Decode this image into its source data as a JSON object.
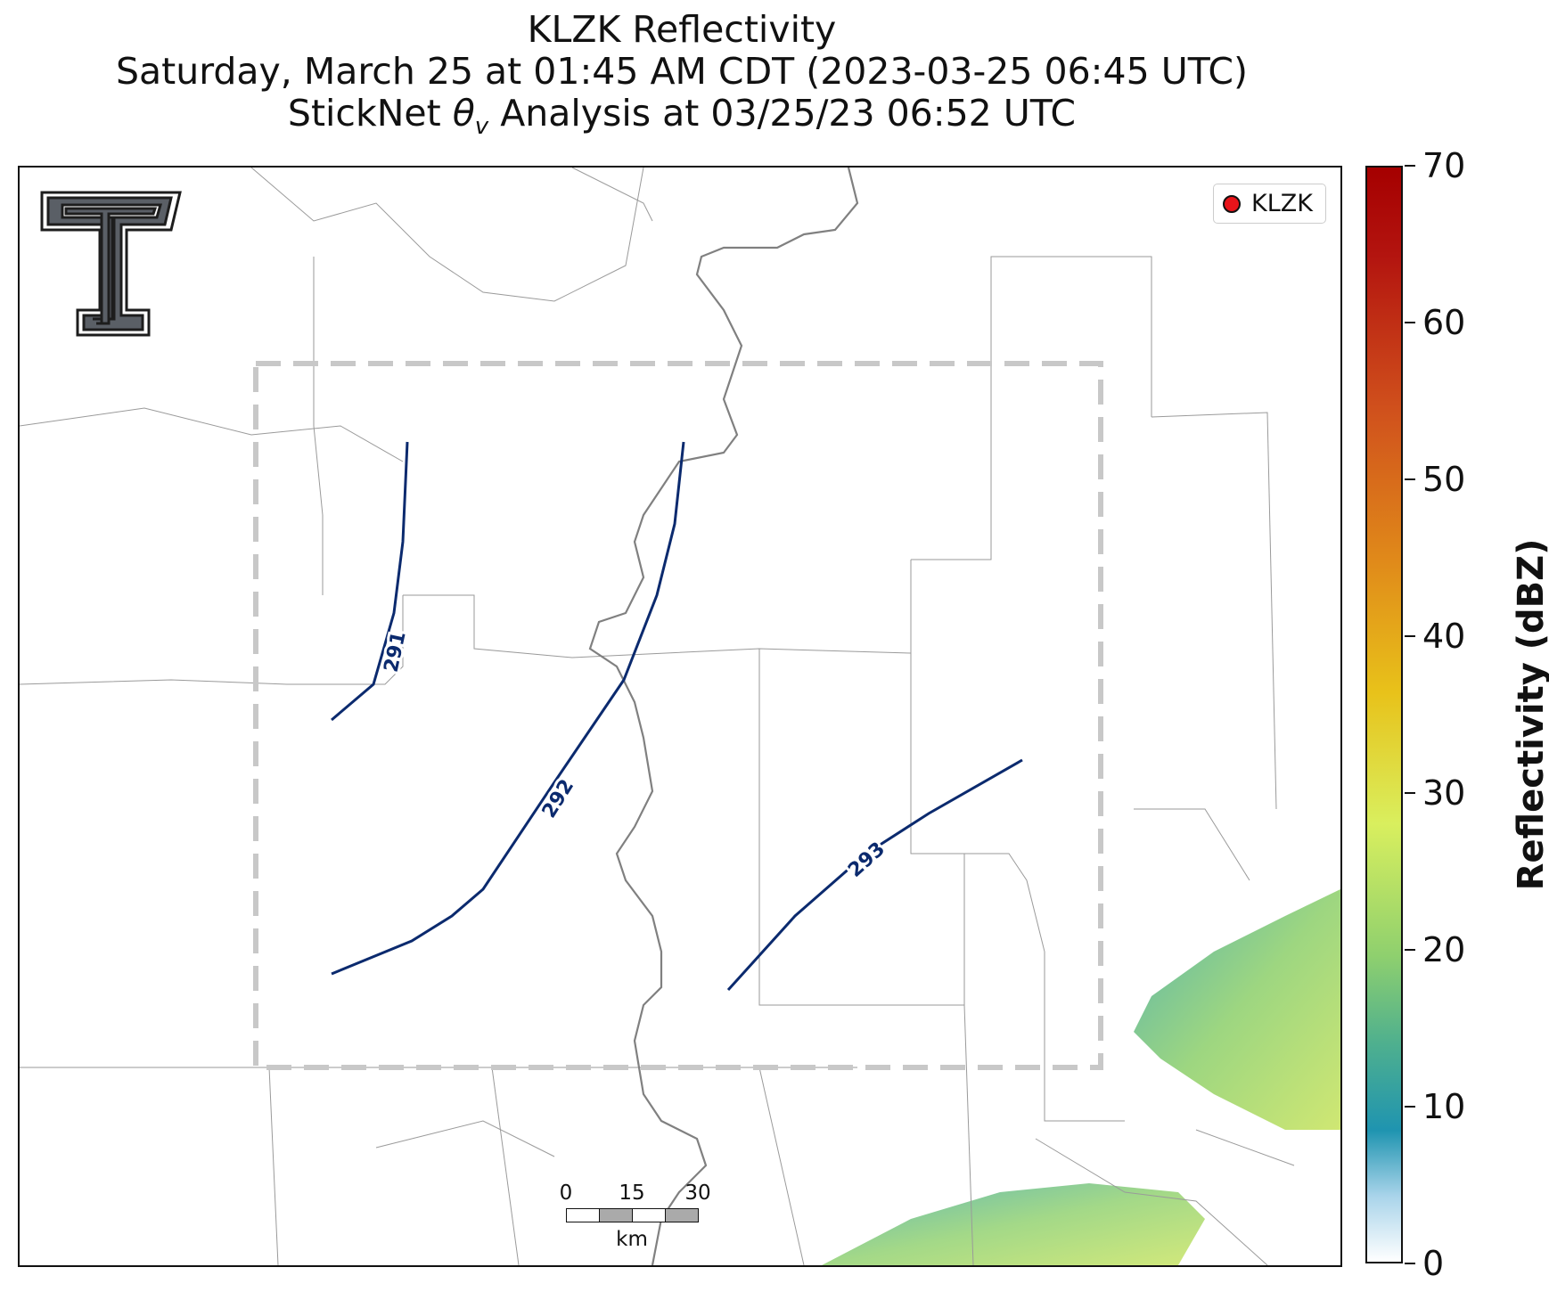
{
  "title": {
    "line1": "KLZK Reflectivity",
    "line2": "Saturday, March 25 at 01:45 AM CDT (2023-03-25 06:45 UTC)",
    "line3_prefix": "StickNet ",
    "line3_symbol": "θ",
    "line3_subscript": "v",
    "line3_suffix": " Analysis at 03/25/23 06:52 UTC"
  },
  "legend": {
    "label": "KLZK",
    "marker_color": "#e8141a"
  },
  "logo": {
    "icon": "double-t-logo-icon"
  },
  "contours": [
    {
      "label": "291",
      "color": "#0b2a6e"
    },
    {
      "label": "292",
      "color": "#0b2a6e"
    },
    {
      "label": "293",
      "color": "#0b2a6e"
    }
  ],
  "scalebar": {
    "ticks": [
      "0",
      "15",
      "30"
    ],
    "unit": "km"
  },
  "colorbar": {
    "title": "Reflectivity (dBZ)",
    "min": 0,
    "max": 70,
    "ticks": [
      "0",
      "10",
      "20",
      "30",
      "40",
      "50",
      "60",
      "70"
    ]
  },
  "colors": {
    "contour": "#0b2a6e",
    "analysis_box": "#c8c8c8",
    "river": "#808080",
    "county_lines": "#9a9a9a"
  }
}
